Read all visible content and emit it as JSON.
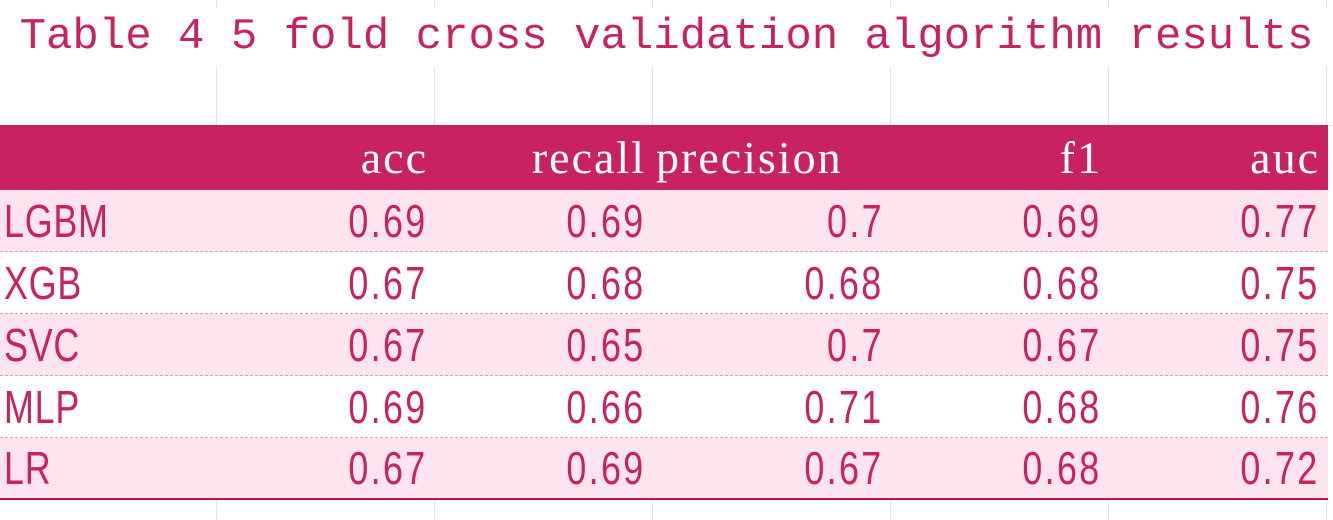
{
  "title": "Table 4 5 fold cross validation algorithm results",
  "colors": {
    "accent": "#c8235f",
    "header_bg": "#c8235f",
    "band_pink": "#fde4ee",
    "header_text": "#ffffff"
  },
  "table": {
    "columns": [
      "",
      "acc",
      "recall",
      "precision",
      "f1",
      "auc"
    ],
    "rows": [
      {
        "model": "LGBM",
        "acc": "0.69",
        "recall": "0.69",
        "precision": "0.7",
        "f1": "0.69",
        "auc": "0.77"
      },
      {
        "model": "XGB",
        "acc": "0.67",
        "recall": "0.68",
        "precision": "0.68",
        "f1": "0.68",
        "auc": "0.75"
      },
      {
        "model": "SVC",
        "acc": "0.67",
        "recall": "0.65",
        "precision": "0.7",
        "f1": "0.67",
        "auc": "0.75"
      },
      {
        "model": "MLP",
        "acc": "0.69",
        "recall": "0.66",
        "precision": "0.71",
        "f1": "0.68",
        "auc": "0.76"
      },
      {
        "model": "LR",
        "acc": "0.67",
        "recall": "0.69",
        "precision": "0.67",
        "f1": "0.68",
        "auc": "0.72"
      }
    ]
  }
}
